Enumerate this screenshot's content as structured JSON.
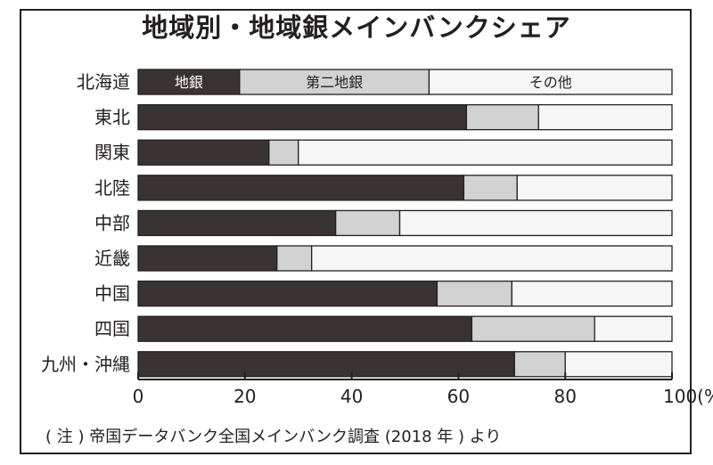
{
  "title": "地域別・地域銀メインバンクシェア",
  "footnote": "( 注 ) 帝国データバンク全国メインバンク調査 (2018 年 ) より",
  "colors": {
    "chigin": "#3a3334",
    "daini": "#d2d2d2",
    "sonota": "#f6f6f6",
    "outline": "#231f20"
  },
  "chart_data": {
    "type": "bar",
    "orientation": "horizontal",
    "stacked": true,
    "categories": [
      "北海道",
      "東北",
      "関東",
      "北陸",
      "中部",
      "近畿",
      "中国",
      "四国",
      "九州・沖縄"
    ],
    "series": [
      {
        "name": "地銀",
        "values": [
          19,
          61.5,
          24.5,
          61,
          37,
          26,
          56,
          62.5,
          70.5
        ]
      },
      {
        "name": "第二地銀",
        "values": [
          35.5,
          13.5,
          5.5,
          10,
          12,
          6.5,
          14,
          23,
          9.5
        ]
      },
      {
        "name": "その他",
        "values": [
          45.5,
          25,
          70,
          29,
          51,
          67.5,
          30,
          14.5,
          20
        ]
      }
    ],
    "xlim": [
      0,
      100
    ],
    "xticks": [
      "0",
      "20",
      "40",
      "60",
      "80",
      "100(%)"
    ],
    "xtick_values": [
      0,
      20,
      40,
      60,
      80,
      100
    ],
    "legend": "inside-first-bar",
    "grid": false
  }
}
